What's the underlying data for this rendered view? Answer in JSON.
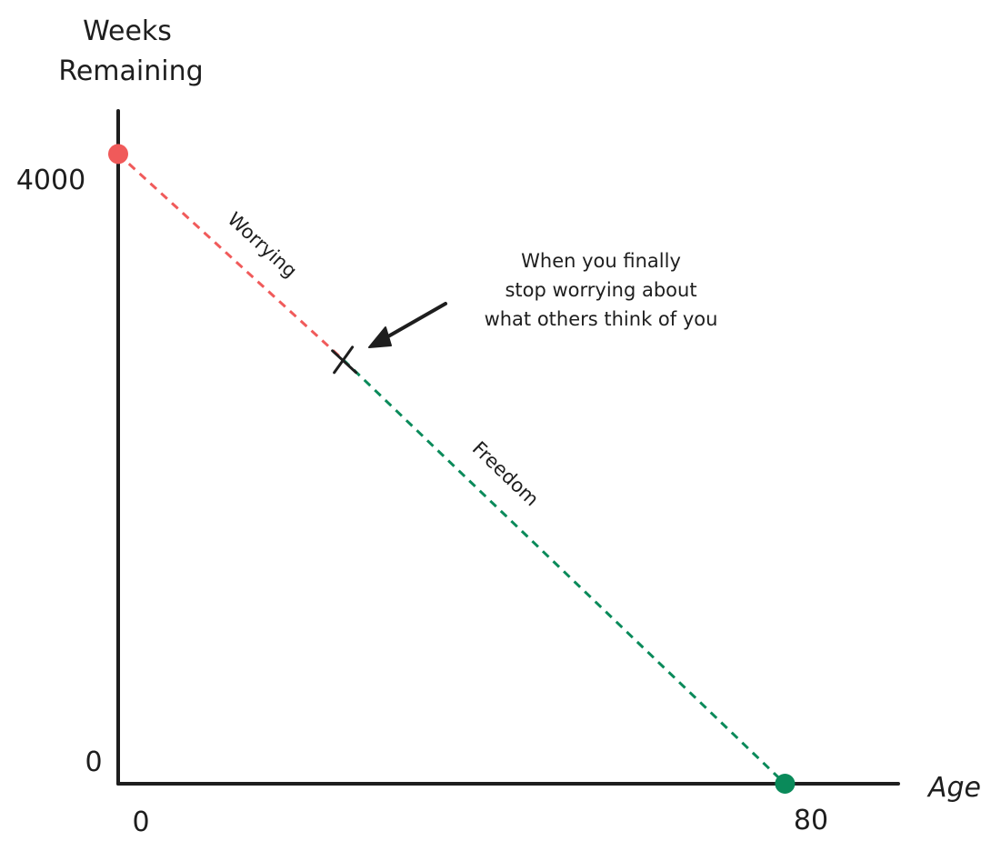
{
  "chart_data": {
    "type": "line",
    "ylabel_lines": [
      "Weeks",
      "Remaining"
    ],
    "xlabel": "Age",
    "x_ticks": [
      "0",
      "80"
    ],
    "y_ticks": [
      "4000",
      "0"
    ],
    "xlim": [
      0,
      80
    ],
    "ylim": [
      0,
      4000
    ],
    "series": [
      {
        "name": "Worrying",
        "x": [
          0,
          26
        ],
        "y": [
          4160,
          2800
        ],
        "color": "#f05a5a",
        "dashed": true
      },
      {
        "name": "Freedom",
        "x": [
          26,
          77
        ],
        "y": [
          2800,
          0
        ],
        "color": "#0a8a5a",
        "dashed": true
      }
    ],
    "start_point": {
      "x": 0,
      "y": 4160,
      "color": "#f05a5a"
    },
    "end_point": {
      "x": 77,
      "y": 0,
      "color": "#0a8a5a"
    },
    "turning_point": {
      "x": 26,
      "y": 2800,
      "marker": "cross-mark"
    },
    "annotation": {
      "lines": [
        "When you finally",
        "stop worrying about",
        "what others think of you"
      ],
      "icon": "arrow-icon"
    },
    "grid": false
  }
}
